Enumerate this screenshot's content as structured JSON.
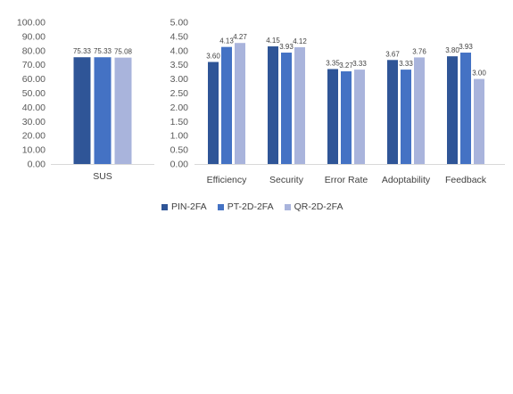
{
  "colors": {
    "pin": "#2f5597",
    "pt": "#4472c4",
    "qr": "#a9b4dc"
  },
  "legend": [
    {
      "label": "PIN-2FA",
      "color": "#2f5597"
    },
    {
      "label": "PT-2D-2FA",
      "color": "#4472c4"
    },
    {
      "label": "QR-2D-2FA",
      "color": "#a9b4dc"
    }
  ],
  "chart_data": [
    {
      "type": "bar",
      "categories": [
        "SUS"
      ],
      "series": [
        {
          "name": "PIN-2FA",
          "values": [
            75.33
          ]
        },
        {
          "name": "PT-2D-2FA",
          "values": [
            75.33
          ]
        },
        {
          "name": "QR-2D-2FA",
          "values": [
            75.08
          ]
        }
      ],
      "data_labels": [
        [
          "75.33"
        ],
        [
          "75.33"
        ],
        [
          "75.08"
        ]
      ],
      "ylim": [
        0,
        100
      ],
      "yticks": [
        "0.00",
        "10.00",
        "20.00",
        "30.00",
        "40.00",
        "50.00",
        "60.00",
        "70.00",
        "80.00",
        "90.00",
        "100.00"
      ],
      "grid": false,
      "legend": "bottom"
    },
    {
      "type": "bar",
      "categories": [
        "Efficiency",
        "Security",
        "Error Rate",
        "Adoptability",
        "Feedback"
      ],
      "series": [
        {
          "name": "PIN-2FA",
          "values": [
            3.6,
            4.15,
            3.35,
            3.67,
            3.8
          ]
        },
        {
          "name": "PT-2D-2FA",
          "values": [
            4.13,
            3.93,
            3.27,
            3.33,
            3.93
          ]
        },
        {
          "name": "QR-2D-2FA",
          "values": [
            4.27,
            4.12,
            3.33,
            3.76,
            3.0
          ]
        }
      ],
      "data_labels": [
        [
          "3.60",
          "4.15",
          "3.35",
          "3.67",
          "3.80"
        ],
        [
          "4.13",
          "3.93",
          "3.27",
          "3.33",
          "3.93"
        ],
        [
          "4.27",
          "4.12",
          "3.33",
          "3.76",
          "3.00"
        ]
      ],
      "ylim": [
        0,
        5
      ],
      "yticks": [
        "0.00",
        "0.50",
        "1.00",
        "1.50",
        "2.00",
        "2.50",
        "3.00",
        "3.50",
        "4.00",
        "4.50",
        "5.00"
      ],
      "grid": false,
      "legend": "bottom"
    }
  ]
}
